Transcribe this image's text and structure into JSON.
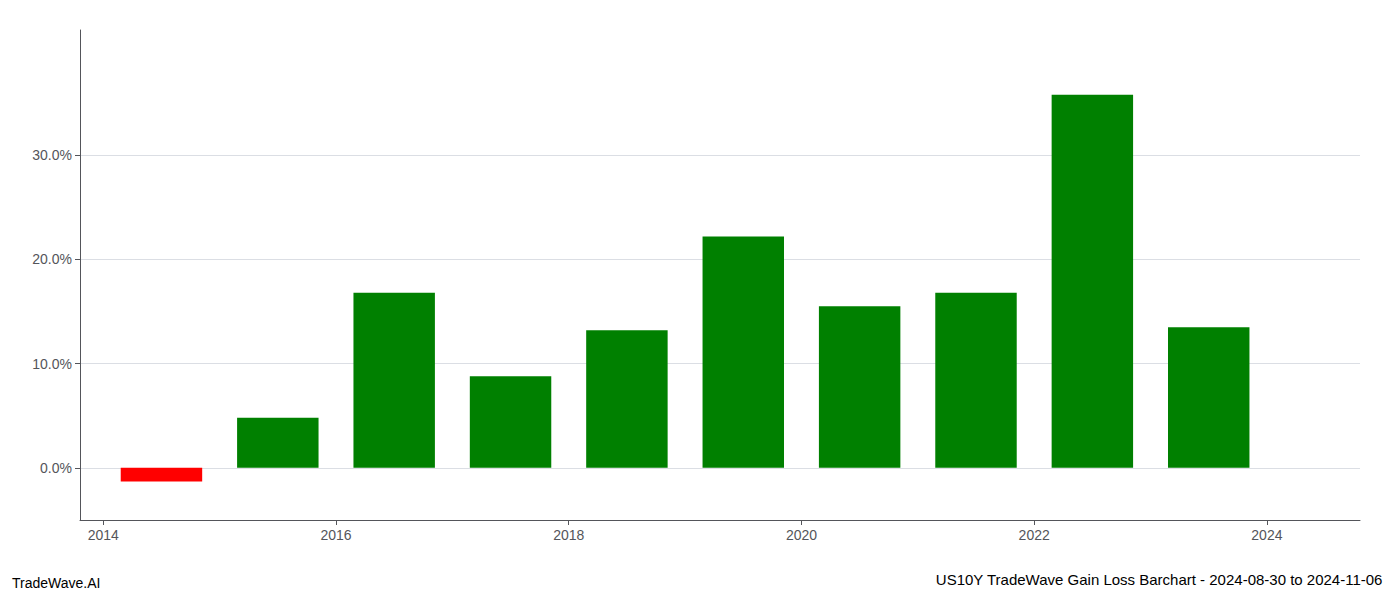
{
  "chart_data": {
    "type": "bar",
    "title": "US10Y TradeWave Gain Loss Barchart - 2024-08-30 to 2024-11-06",
    "annotations": [
      "TradeWave.AI"
    ],
    "x": [
      2014.5,
      2015.5,
      2016.5,
      2017.5,
      2018.5,
      2019.5,
      2020.5,
      2021.5,
      2022.5,
      2023.5
    ],
    "values": [
      -0.013,
      0.048,
      0.168,
      0.088,
      0.132,
      0.222,
      0.155,
      0.168,
      0.358,
      0.135
    ],
    "colors": [
      "#ff0000",
      "#008000",
      "#008000",
      "#008000",
      "#008000",
      "#008000",
      "#008000",
      "#008000",
      "#008000",
      "#008000"
    ],
    "xlim": [
      2013.8,
      2024.8
    ],
    "xticks": [
      2014,
      2016,
      2018,
      2020,
      2022,
      2024
    ],
    "ylim": [
      -0.05,
      0.42
    ],
    "yticks": [
      {
        "value": 0,
        "label": "0.0%"
      },
      {
        "value": 0.1,
        "label": "10.0%"
      },
      {
        "value": 0.2,
        "label": "20.0%"
      },
      {
        "value": 0.3,
        "label": "30.0%"
      }
    ],
    "grid": true
  }
}
